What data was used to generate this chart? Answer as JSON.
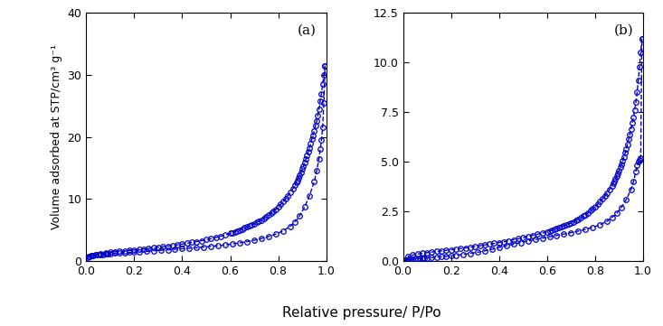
{
  "panel_a_label": "(a)",
  "panel_b_label": "(b)",
  "xlabel": "Relative pressure/ P/Po",
  "ylabel": "Volume adsorbed at STP/cm³ g⁻¹",
  "color": "#0000cc",
  "marker": "o",
  "markersize": 4,
  "linewidth": 1.0,
  "linestyle": "--",
  "panel_a": {
    "ylim": [
      0,
      40
    ],
    "yticks": [
      0,
      10,
      20,
      30,
      40
    ],
    "xlim": [
      0,
      1.0
    ],
    "xticks": [
      0.0,
      0.2,
      0.4,
      0.6,
      0.8,
      1.0
    ],
    "adsorption_x": [
      0.005,
      0.01,
      0.015,
      0.02,
      0.025,
      0.03,
      0.04,
      0.05,
      0.06,
      0.07,
      0.08,
      0.09,
      0.1,
      0.12,
      0.14,
      0.16,
      0.18,
      0.2,
      0.22,
      0.25,
      0.28,
      0.31,
      0.34,
      0.37,
      0.4,
      0.43,
      0.46,
      0.49,
      0.52,
      0.55,
      0.58,
      0.61,
      0.64,
      0.67,
      0.7,
      0.73,
      0.76,
      0.79,
      0.82,
      0.85,
      0.87,
      0.89,
      0.91,
      0.93,
      0.95,
      0.96,
      0.97,
      0.975,
      0.98,
      0.985,
      0.99,
      0.995
    ],
    "adsorption_y": [
      0.55,
      0.65,
      0.72,
      0.78,
      0.83,
      0.88,
      0.93,
      0.98,
      1.02,
      1.06,
      1.1,
      1.13,
      1.16,
      1.22,
      1.27,
      1.32,
      1.37,
      1.42,
      1.47,
      1.54,
      1.62,
      1.7,
      1.78,
      1.86,
      1.94,
      2.02,
      2.12,
      2.22,
      2.33,
      2.45,
      2.58,
      2.73,
      2.9,
      3.1,
      3.33,
      3.6,
      3.92,
      4.32,
      4.82,
      5.55,
      6.3,
      7.3,
      8.7,
      10.5,
      12.8,
      14.5,
      16.5,
      18.0,
      19.5,
      21.5,
      25.5,
      31.5
    ],
    "desorption_x": [
      0.995,
      0.99,
      0.985,
      0.98,
      0.975,
      0.97,
      0.965,
      0.96,
      0.955,
      0.95,
      0.945,
      0.94,
      0.935,
      0.93,
      0.925,
      0.92,
      0.915,
      0.91,
      0.905,
      0.9,
      0.895,
      0.89,
      0.885,
      0.88,
      0.875,
      0.87,
      0.86,
      0.85,
      0.84,
      0.83,
      0.82,
      0.81,
      0.8,
      0.79,
      0.78,
      0.77,
      0.76,
      0.75,
      0.74,
      0.73,
      0.72,
      0.71,
      0.7,
      0.69,
      0.68,
      0.67,
      0.66,
      0.65,
      0.64,
      0.63,
      0.62,
      0.61,
      0.6,
      0.58,
      0.56,
      0.54,
      0.52,
      0.5,
      0.48,
      0.46,
      0.44,
      0.42,
      0.4,
      0.38,
      0.36,
      0.34,
      0.32,
      0.3,
      0.28,
      0.26,
      0.24,
      0.22,
      0.2,
      0.18,
      0.16,
      0.14,
      0.12,
      0.1,
      0.08,
      0.06,
      0.04,
      0.02
    ],
    "desorption_y": [
      31.5,
      30.0,
      28.5,
      27.0,
      25.8,
      24.5,
      23.5,
      22.5,
      21.8,
      21.0,
      20.3,
      19.6,
      18.9,
      18.2,
      17.6,
      17.0,
      16.4,
      15.8,
      15.3,
      14.8,
      14.3,
      13.8,
      13.4,
      13.0,
      12.6,
      12.2,
      11.6,
      11.0,
      10.5,
      10.0,
      9.55,
      9.12,
      8.72,
      8.35,
      8.0,
      7.68,
      7.38,
      7.1,
      6.84,
      6.6,
      6.38,
      6.18,
      5.98,
      5.8,
      5.62,
      5.46,
      5.3,
      5.14,
      5.0,
      4.85,
      4.7,
      4.56,
      4.42,
      4.18,
      3.96,
      3.76,
      3.58,
      3.4,
      3.24,
      3.1,
      2.96,
      2.82,
      2.7,
      2.58,
      2.47,
      2.37,
      2.27,
      2.18,
      2.09,
      2.0,
      1.92,
      1.84,
      1.76,
      1.68,
      1.6,
      1.52,
      1.44,
      1.36,
      1.27,
      1.17,
      1.05,
      0.88
    ]
  },
  "panel_b": {
    "ylim": [
      0,
      12.5
    ],
    "yticks": [
      0.0,
      2.5,
      5.0,
      7.5,
      10.0,
      12.5
    ],
    "xlim": [
      0,
      1.0
    ],
    "xticks": [
      0.0,
      0.2,
      0.4,
      0.6,
      0.8,
      1.0
    ],
    "adsorption_x": [
      0.005,
      0.01,
      0.015,
      0.02,
      0.025,
      0.03,
      0.04,
      0.05,
      0.06,
      0.07,
      0.08,
      0.09,
      0.1,
      0.12,
      0.14,
      0.16,
      0.18,
      0.2,
      0.22,
      0.25,
      0.28,
      0.31,
      0.34,
      0.37,
      0.4,
      0.43,
      0.46,
      0.49,
      0.52,
      0.55,
      0.58,
      0.61,
      0.64,
      0.67,
      0.7,
      0.73,
      0.76,
      0.79,
      0.82,
      0.85,
      0.87,
      0.89,
      0.91,
      0.93,
      0.95,
      0.96,
      0.97,
      0.975,
      0.98,
      0.985,
      0.99,
      0.995
    ],
    "adsorption_y": [
      0.02,
      0.03,
      0.04,
      0.05,
      0.06,
      0.07,
      0.08,
      0.09,
      0.1,
      0.11,
      0.12,
      0.13,
      0.14,
      0.16,
      0.18,
      0.2,
      0.22,
      0.25,
      0.28,
      0.32,
      0.37,
      0.43,
      0.5,
      0.58,
      0.67,
      0.76,
      0.84,
      0.92,
      1.0,
      1.07,
      1.14,
      1.21,
      1.28,
      1.35,
      1.42,
      1.5,
      1.59,
      1.69,
      1.82,
      2.0,
      2.18,
      2.4,
      2.7,
      3.1,
      3.6,
      4.0,
      4.5,
      4.8,
      5.0,
      5.1,
      5.2,
      11.2
    ],
    "desorption_x": [
      0.995,
      0.99,
      0.985,
      0.98,
      0.975,
      0.97,
      0.965,
      0.96,
      0.955,
      0.95,
      0.945,
      0.94,
      0.935,
      0.93,
      0.925,
      0.92,
      0.915,
      0.91,
      0.905,
      0.9,
      0.895,
      0.89,
      0.885,
      0.88,
      0.875,
      0.87,
      0.86,
      0.85,
      0.84,
      0.83,
      0.82,
      0.81,
      0.8,
      0.79,
      0.78,
      0.77,
      0.76,
      0.75,
      0.74,
      0.73,
      0.72,
      0.71,
      0.7,
      0.69,
      0.68,
      0.67,
      0.66,
      0.65,
      0.64,
      0.63,
      0.62,
      0.61,
      0.6,
      0.58,
      0.56,
      0.54,
      0.52,
      0.5,
      0.48,
      0.46,
      0.44,
      0.42,
      0.4,
      0.38,
      0.36,
      0.34,
      0.32,
      0.3,
      0.28,
      0.26,
      0.24,
      0.22,
      0.2,
      0.18,
      0.16,
      0.14,
      0.12,
      0.1,
      0.08,
      0.06,
      0.04,
      0.02
    ],
    "desorption_y": [
      11.2,
      10.5,
      9.8,
      9.1,
      8.5,
      8.0,
      7.6,
      7.25,
      6.95,
      6.65,
      6.38,
      6.12,
      5.88,
      5.65,
      5.44,
      5.24,
      5.06,
      4.88,
      4.72,
      4.56,
      4.42,
      4.28,
      4.15,
      4.02,
      3.9,
      3.78,
      3.6,
      3.43,
      3.27,
      3.12,
      2.98,
      2.85,
      2.73,
      2.62,
      2.52,
      2.42,
      2.33,
      2.25,
      2.17,
      2.1,
      2.03,
      1.97,
      1.91,
      1.86,
      1.81,
      1.76,
      1.71,
      1.66,
      1.62,
      1.58,
      1.54,
      1.5,
      1.46,
      1.4,
      1.34,
      1.28,
      1.22,
      1.16,
      1.11,
      1.06,
      1.01,
      0.96,
      0.92,
      0.88,
      0.84,
      0.8,
      0.76,
      0.72,
      0.68,
      0.65,
      0.62,
      0.59,
      0.56,
      0.53,
      0.5,
      0.47,
      0.44,
      0.41,
      0.38,
      0.34,
      0.29,
      0.22
    ]
  }
}
